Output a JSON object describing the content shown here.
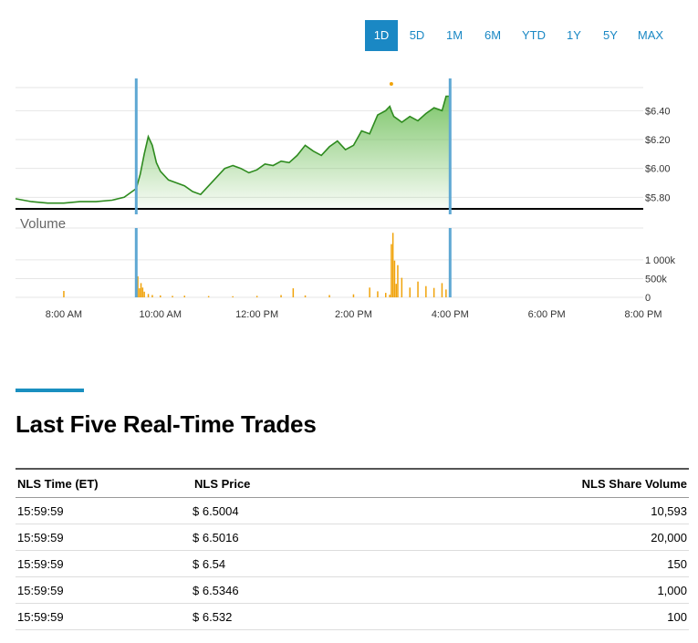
{
  "range_selector": {
    "buttons": [
      "1D",
      "5D",
      "1M",
      "6M",
      "YTD",
      "1Y",
      "5Y",
      "MAX"
    ],
    "active": "1D"
  },
  "colors": {
    "accent": "#1a88c4",
    "price_line": "#2e8b1f",
    "price_fill": "#8fce7a",
    "volume_bar": "#f0a30a",
    "session_marker": "#5fa8d3"
  },
  "chart_data": {
    "type": "line",
    "title": "",
    "price_axis": {
      "ticks": [
        5.8,
        6.0,
        6.2,
        6.4
      ],
      "tick_labels": [
        "$5.80",
        "$6.00",
        "$6.20",
        "$6.40"
      ],
      "ylim": [
        5.72,
        6.56
      ]
    },
    "volume_axis": {
      "label": "Volume",
      "ticks": [
        0,
        500000,
        1000000
      ],
      "tick_labels": [
        "0",
        "500k",
        "1 000k"
      ],
      "ylim": [
        0,
        1850000
      ]
    },
    "x_axis": {
      "tick_labels": [
        "8:00 AM",
        "10:00 AM",
        "12:00 PM",
        "2:00 PM",
        "4:00 PM",
        "6:00 PM",
        "8:00 PM"
      ],
      "ticks": [
        "08:00",
        "10:00",
        "12:00",
        "14:00",
        "16:00",
        "18:00",
        "20:00"
      ],
      "range": [
        "07:00",
        "20:00"
      ]
    },
    "session": {
      "open": "09:30",
      "close": "16:00"
    },
    "price_series": {
      "x": [
        "07:00",
        "07:20",
        "07:40",
        "08:00",
        "08:20",
        "08:40",
        "09:00",
        "09:15",
        "09:30",
        "09:35",
        "09:40",
        "09:45",
        "09:50",
        "09:55",
        "10:00",
        "10:10",
        "10:20",
        "10:30",
        "10:40",
        "10:50",
        "11:00",
        "11:10",
        "11:20",
        "11:30",
        "11:40",
        "11:50",
        "12:00",
        "12:10",
        "12:20",
        "12:30",
        "12:40",
        "12:50",
        "13:00",
        "13:10",
        "13:20",
        "13:30",
        "13:40",
        "13:50",
        "14:00",
        "14:10",
        "14:20",
        "14:30",
        "14:40",
        "14:45",
        "14:47",
        "14:50",
        "14:55",
        "15:00",
        "15:10",
        "15:20",
        "15:30",
        "15:40",
        "15:50",
        "15:55",
        "16:00"
      ],
      "y": [
        5.79,
        5.77,
        5.76,
        5.76,
        5.77,
        5.77,
        5.78,
        5.8,
        5.86,
        5.96,
        6.1,
        6.22,
        6.16,
        6.04,
        5.98,
        5.92,
        5.9,
        5.88,
        5.84,
        5.82,
        5.88,
        5.94,
        6.0,
        6.02,
        6.0,
        5.97,
        5.99,
        6.03,
        6.02,
        6.05,
        6.04,
        6.09,
        6.16,
        6.12,
        6.09,
        6.15,
        6.19,
        6.13,
        6.16,
        6.26,
        6.24,
        6.37,
        6.4,
        6.43,
        6.4,
        6.36,
        6.34,
        6.32,
        6.36,
        6.33,
        6.38,
        6.42,
        6.4,
        6.5,
        6.5
      ],
      "open_marker": "08:00"
    },
    "volume_series": {
      "x": [
        "08:00",
        "09:32",
        "09:34",
        "09:36",
        "09:38",
        "09:40",
        "09:45",
        "09:50",
        "10:00",
        "10:15",
        "10:30",
        "11:00",
        "11:30",
        "12:00",
        "12:30",
        "12:45",
        "13:00",
        "13:30",
        "14:00",
        "14:20",
        "14:30",
        "14:40",
        "14:45",
        "14:47",
        "14:49",
        "14:51",
        "14:53",
        "14:55",
        "15:00",
        "15:10",
        "15:20",
        "15:30",
        "15:40",
        "15:50",
        "15:55",
        "16:00"
      ],
      "y": [
        170000,
        560000,
        240000,
        380000,
        260000,
        150000,
        90000,
        60000,
        50000,
        40000,
        45000,
        35000,
        30000,
        40000,
        60000,
        240000,
        50000,
        60000,
        80000,
        260000,
        160000,
        120000,
        70000,
        1420000,
        1720000,
        980000,
        360000,
        860000,
        520000,
        260000,
        420000,
        300000,
        250000,
        380000,
        210000,
        260000
      ]
    }
  },
  "trades_section": {
    "title": "Last Five Real-Time Trades",
    "columns": [
      "NLS Time (ET)",
      "NLS Price",
      "NLS Share Volume"
    ],
    "rows": [
      [
        "15:59:59",
        "$ 6.5004",
        "10,593"
      ],
      [
        "15:59:59",
        "$ 6.5016",
        "20,000"
      ],
      [
        "15:59:59",
        "$ 6.54",
        "150"
      ],
      [
        "15:59:59",
        "$ 6.5346",
        "1,000"
      ],
      [
        "15:59:59",
        "$ 6.532",
        "100"
      ]
    ]
  }
}
